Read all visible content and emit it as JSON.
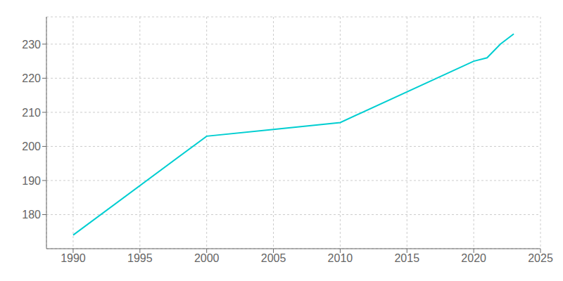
{
  "chart_data": {
    "type": "line",
    "x": [
      1990,
      2000,
      2005,
      2010,
      2020,
      2021,
      2022,
      2023
    ],
    "values": [
      174,
      203,
      205,
      207,
      225,
      226,
      230,
      233
    ],
    "color": "#00CED1",
    "xlim": [
      1988,
      2025
    ],
    "ylim": [
      170,
      238
    ],
    "xticks": [
      1990,
      1995,
      2000,
      2005,
      2010,
      2015,
      2020,
      2025
    ],
    "yticks": [
      180,
      190,
      200,
      210,
      220,
      230
    ],
    "grid": true
  }
}
